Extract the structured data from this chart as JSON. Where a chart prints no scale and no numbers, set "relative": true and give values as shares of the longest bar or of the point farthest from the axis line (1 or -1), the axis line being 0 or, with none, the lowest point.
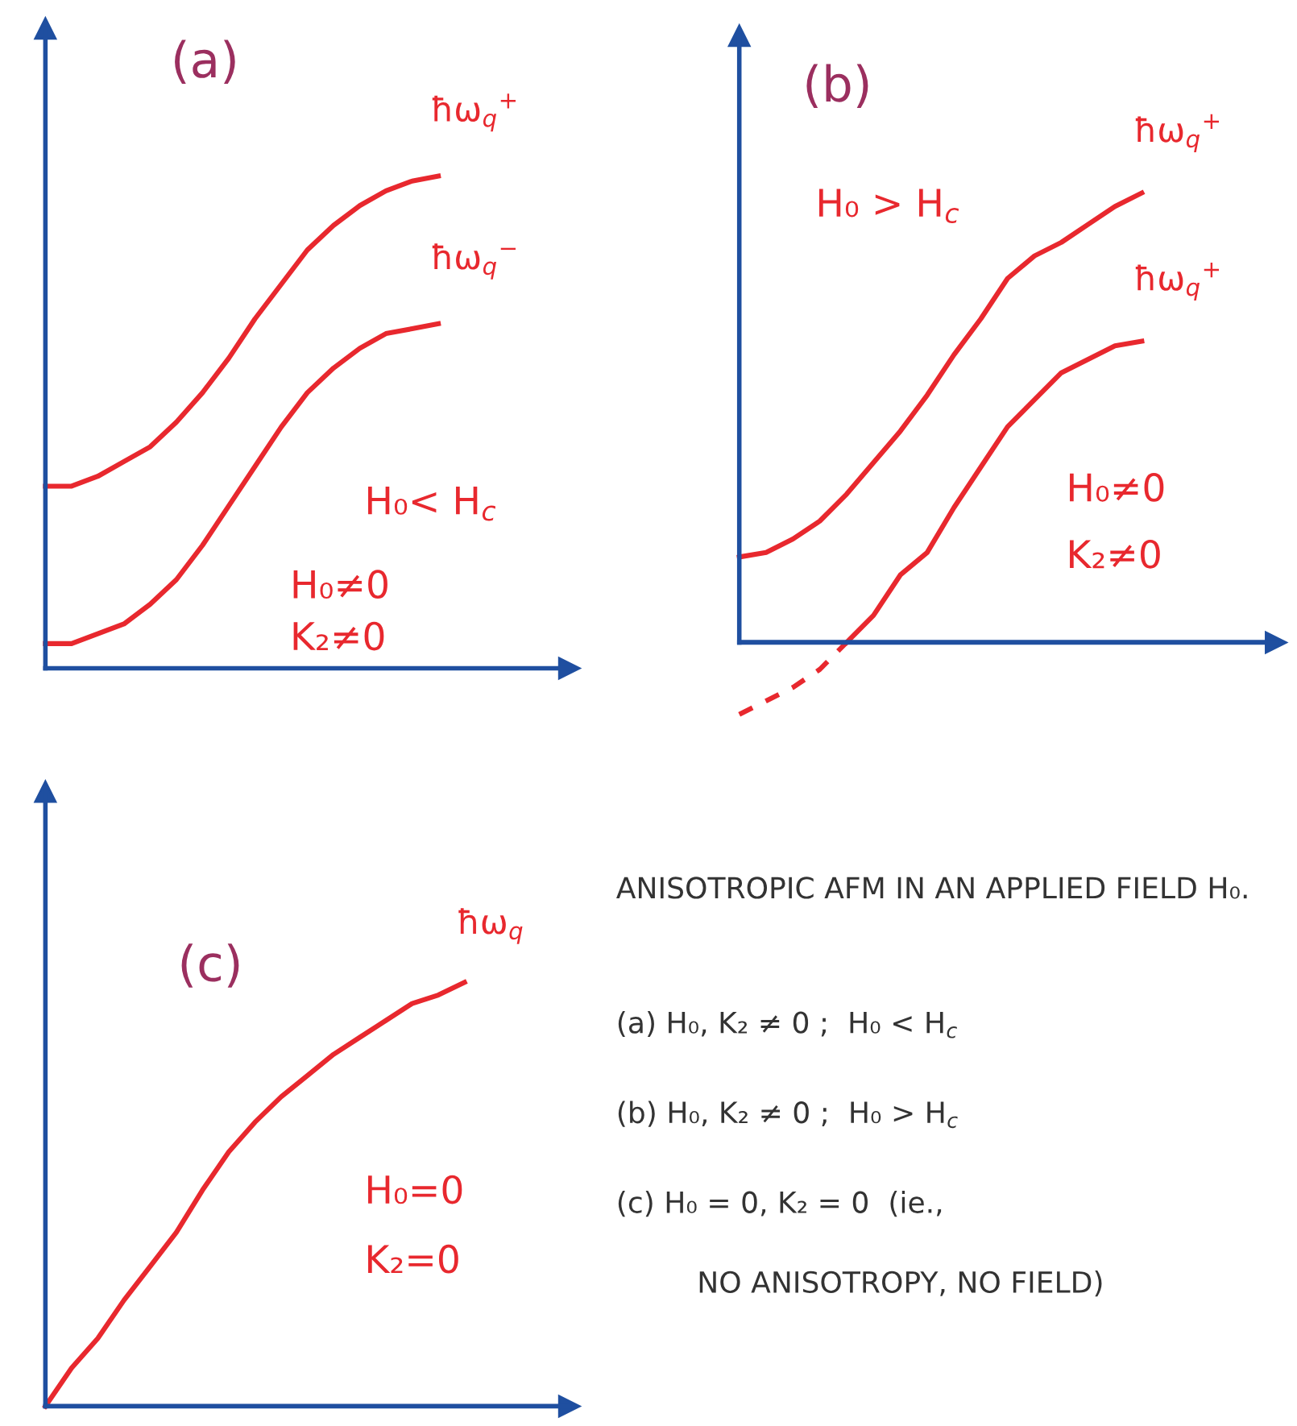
{
  "chart_data": [
    {
      "type": "line",
      "title": "(a)",
      "relative": true,
      "legend": false,
      "annotations": [
        "H₀< H$_{c}$",
        "H₀≠0",
        "K₂≠0"
      ],
      "categories": [
        null,
        null,
        null,
        null,
        null,
        null,
        null,
        null,
        null,
        null,
        null,
        null,
        null,
        null,
        null,
        null,
        null,
        null,
        null,
        null,
        null
      ],
      "series": [
        {
          "name": "ħω$_{q}$$^{+}$",
          "color": "#e8282e",
          "values": [
            0.37,
            0.37,
            0.39,
            0.42,
            0.45,
            0.5,
            0.56,
            0.63,
            0.71,
            0.78,
            0.85,
            0.9,
            0.94,
            0.97,
            0.99,
            1.0,
            null,
            null,
            null,
            null,
            null
          ]
        },
        {
          "name": "ħω$_{q}$$^{−}$",
          "color": "#e8282e",
          "values": [
            0.05,
            0.05,
            0.07,
            0.09,
            0.13,
            0.18,
            0.25,
            0.33,
            0.41,
            0.49,
            0.56,
            0.61,
            0.65,
            0.68,
            0.69,
            0.7,
            null,
            null,
            null,
            null,
            null
          ]
        }
      ]
    },
    {
      "type": "line",
      "title": "(b)",
      "relative": true,
      "ref_lines": [
        {
          "axis": "y",
          "value": 0,
          "color": "#1f4fa0"
        }
      ],
      "legend": false,
      "annotations": [
        "H₀ > H$_{c}$",
        "H₀≠0",
        "K₂≠0"
      ],
      "categories": [
        null,
        null,
        null,
        null,
        null,
        null,
        null,
        null,
        null,
        null,
        null,
        null,
        null,
        null,
        null,
        null,
        null,
        null,
        null,
        null,
        null
      ],
      "series": [
        {
          "name": "ħω$_{q}$$^{+}$",
          "color": "#e8282e",
          "values": [
            0.19,
            0.2,
            0.23,
            0.27,
            0.33,
            0.4,
            0.47,
            0.55,
            0.64,
            0.72,
            0.81,
            0.86,
            0.89,
            0.93,
            0.97,
            1.0,
            null,
            null,
            null,
            null,
            null
          ]
        },
        {
          "name": "ħω$_{q}$$^{+}$",
          "color": "#e8282e",
          "values": [
            null,
            null,
            null,
            null,
            0.0,
            0.06,
            0.15,
            0.2,
            0.3,
            0.39,
            0.48,
            0.54,
            0.6,
            0.63,
            0.66,
            0.67,
            null,
            null,
            null,
            null,
            null
          ]
        },
        {
          "color": "#e8282e",
          "line_style": "dashed",
          "values": [
            -0.16,
            -0.13,
            -0.1,
            -0.06,
            0.0,
            null,
            null,
            null,
            null,
            null,
            null,
            null,
            null,
            null,
            null,
            null,
            null,
            null,
            null,
            null,
            null
          ]
        }
      ]
    },
    {
      "type": "line",
      "title": "(c)",
      "relative": true,
      "legend": false,
      "annotations": [
        "H₀=0",
        "K₂=0"
      ],
      "categories": [
        null,
        null,
        null,
        null,
        null,
        null,
        null,
        null,
        null,
        null,
        null,
        null,
        null,
        null,
        null,
        null,
        null,
        null,
        null,
        null,
        null
      ],
      "series": [
        {
          "name": "ħω$_{q}$",
          "color": "#e8282e",
          "values": [
            0.0,
            0.09,
            0.16,
            0.25,
            0.33,
            0.41,
            0.51,
            0.6,
            0.67,
            0.73,
            0.78,
            0.83,
            0.87,
            0.91,
            0.95,
            0.97,
            1.0,
            null,
            null,
            null,
            null
          ]
        }
      ]
    },
    {
      "type": "other",
      "annotations": [
        "ANISOTROPIC AFM IN AN APPLIED FIELD H₀.",
        "(a) H₀, K₂ ≠ 0 ;  H₀ < H$_{c}$",
        "(b) H₀, K₂ ≠ 0 ;  H₀ > H$_{c}$",
        "(c) H₀ = 0, K₂ = 0  (ie.,",
        "NO ANISOTROPY, NO FIELD)"
      ]
    }
  ]
}
